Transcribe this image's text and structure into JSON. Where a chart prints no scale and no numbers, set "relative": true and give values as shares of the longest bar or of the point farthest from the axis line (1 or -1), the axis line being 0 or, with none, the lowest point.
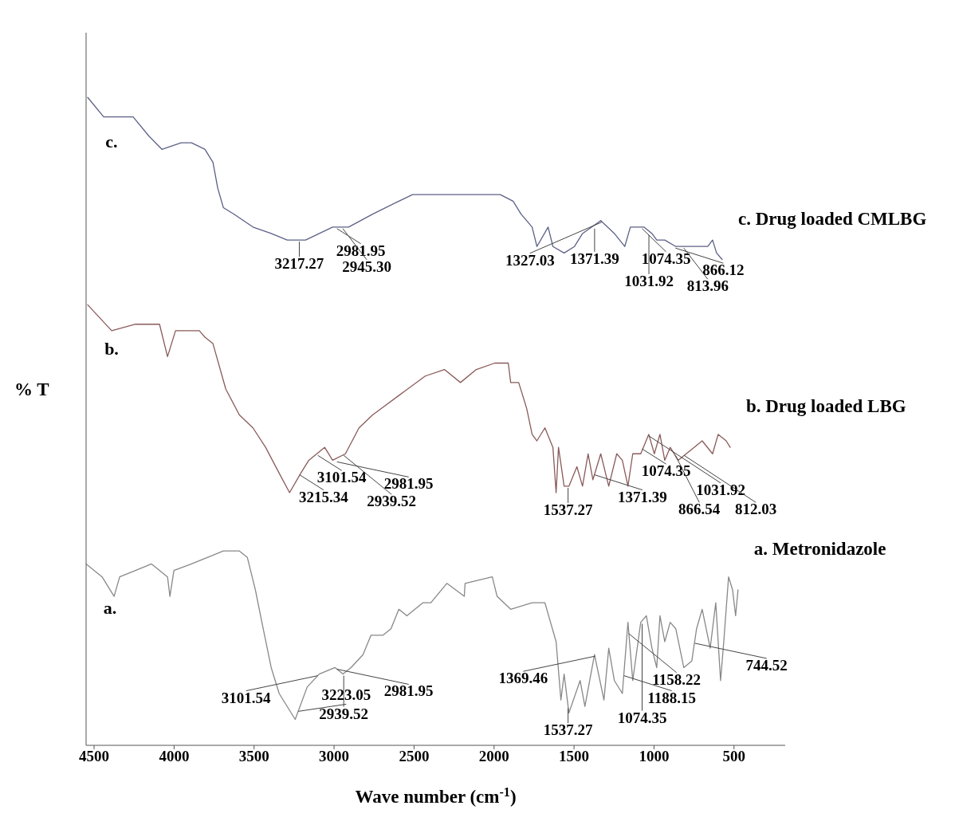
{
  "chart_data": {
    "type": "line",
    "xlabel": "Wave number (cm$^{-1}$)",
    "ylabel": "% T",
    "relative": true,
    "marker": "none",
    "xlim": [
      4550,
      180
    ],
    "xticks": [
      4500,
      4000,
      3500,
      3000,
      2500,
      2000,
      1500,
      1000,
      500
    ],
    "series": [
      {
        "name": "c. Drug loaded CMLBG",
        "color": "#5b6085",
        "x": [
          4540,
          4440,
          4256,
          4156,
          4076,
          3956,
          3891,
          3807,
          3757,
          3727,
          3692,
          3627,
          3507,
          3393,
          3293,
          3178,
          3009,
          2969,
          2909,
          2759,
          2595,
          2510,
          2345,
          2230,
          2096,
          1961,
          1881,
          1831,
          1762,
          1732,
          1662,
          1632,
          1562,
          1497,
          1447,
          1333,
          1248,
          1183,
          1148,
          1063,
          1013,
          983,
          933,
          864,
          814,
          749,
          664,
          634,
          609,
          574
        ],
        "values": [
          1,
          0.97,
          0.97,
          0.94,
          0.92,
          0.93,
          0.93,
          0.92,
          0.9,
          0.86,
          0.83,
          0.82,
          0.8,
          0.79,
          0.78,
          0.78,
          0.8,
          0.8,
          0.8,
          0.82,
          0.84,
          0.85,
          0.85,
          0.85,
          0.85,
          0.85,
          0.84,
          0.82,
          0.8,
          0.77,
          0.8,
          0.77,
          0.76,
          0.77,
          0.79,
          0.81,
          0.79,
          0.77,
          0.8,
          0.8,
          0.79,
          0.78,
          0.78,
          0.77,
          0.77,
          0.77,
          0.77,
          0.78,
          0.76,
          0.75
        ]
      },
      {
        "name": "b. Drug loaded LBG",
        "color": "#8a5a5a",
        "x": [
          4540,
          4465,
          4390,
          4241,
          4091,
          4041,
          3991,
          3926,
          3842,
          3807,
          3757,
          3677,
          3592,
          3507,
          3428,
          3343,
          3278,
          3208,
          3158,
          3059,
          3009,
          2929,
          2844,
          2759,
          2595,
          2430,
          2310,
          2210,
          2111,
          1996,
          1911,
          1896,
          1846,
          1796,
          1762,
          1732,
          1682,
          1632,
          1612,
          1597,
          1562,
          1532,
          1482,
          1447,
          1412,
          1382,
          1333,
          1283,
          1233,
          1198,
          1163,
          1133,
          1083,
          1033,
          998,
          963,
          933,
          899,
          849,
          799,
          749,
          699,
          634,
          599,
          549,
          524
        ],
        "values": [
          0.68,
          0.66,
          0.64,
          0.65,
          0.65,
          0.6,
          0.64,
          0.64,
          0.64,
          0.63,
          0.62,
          0.55,
          0.51,
          0.49,
          0.46,
          0.42,
          0.39,
          0.42,
          0.44,
          0.46,
          0.44,
          0.45,
          0.49,
          0.51,
          0.54,
          0.57,
          0.58,
          0.56,
          0.58,
          0.59,
          0.59,
          0.56,
          0.56,
          0.52,
          0.48,
          0.47,
          0.49,
          0.46,
          0.39,
          0.46,
          0.4,
          0.4,
          0.43,
          0.4,
          0.45,
          0.41,
          0.45,
          0.4,
          0.45,
          0.44,
          0.4,
          0.45,
          0.45,
          0.48,
          0.45,
          0.48,
          0.44,
          0.46,
          0.44,
          0.45,
          0.46,
          0.47,
          0.45,
          0.48,
          0.47,
          0.46
        ]
      },
      {
        "name": "a. Metronidazole",
        "color": "#888888",
        "x": [
          4550,
          4450,
          4375,
          4340,
          4241,
          4141,
          4041,
          4026,
          4001,
          3891,
          3792,
          3692,
          3592,
          3542,
          3492,
          3443,
          3393,
          3343,
          3293,
          3243,
          3168,
          3093,
          2994,
          2944,
          2894,
          2819,
          2769,
          2694,
          2644,
          2595,
          2545,
          2445,
          2395,
          2295,
          2186,
          2181,
          2011,
          1981,
          1896,
          1762,
          1682,
          1647,
          1612,
          1582,
          1562,
          1532,
          1462,
          1432,
          1372,
          1313,
          1283,
          1248,
          1198,
          1163,
          1133,
          1083,
          1048,
          1013,
          983,
          963,
          933,
          899,
          864,
          814,
          764,
          734,
          699,
          649,
          614,
          584,
          564,
          534,
          509,
          490,
          475
        ],
        "values": [
          0.28,
          0.26,
          0.23,
          0.26,
          0.27,
          0.28,
          0.26,
          0.23,
          0.27,
          0.28,
          0.29,
          0.3,
          0.3,
          0.29,
          0.24,
          0.18,
          0.12,
          0.08,
          0.06,
          0.04,
          0.09,
          0.11,
          0.12,
          0.11,
          0.12,
          0.14,
          0.17,
          0.17,
          0.18,
          0.21,
          0.2,
          0.22,
          0.22,
          0.25,
          0.23,
          0.25,
          0.26,
          0.23,
          0.21,
          0.22,
          0.22,
          0.19,
          0.16,
          0.07,
          0.11,
          0.05,
          0.1,
          0.06,
          0.14,
          0.07,
          0.15,
          0.1,
          0.08,
          0.19,
          0.1,
          0.19,
          0.2,
          0.15,
          0.12,
          0.2,
          0.16,
          0.19,
          0.18,
          0.12,
          0.13,
          0.18,
          0.21,
          0.15,
          0.22,
          0.1,
          0.16,
          0.26,
          0.24,
          0.2,
          0.24
        ]
      }
    ],
    "annotations": [
      "c.",
      "b.",
      "a.",
      {
        "text": "3217.27",
        "x": 3217.27,
        "y": 0.78
      },
      {
        "text": "2981.95",
        "x": 2981.95,
        "y": 0.8
      },
      {
        "text": "2945.30",
        "x": 2945.3,
        "y": 0.8
      },
      {
        "text": "1371.39",
        "x": 1371.39,
        "y": 0.8
      },
      {
        "text": "1327.03",
        "x": 1327.03,
        "y": 0.81
      },
      {
        "text": "1074.35",
        "x": 1074.35,
        "y": 0.8
      },
      {
        "text": "1031.92",
        "x": 1031.92,
        "y": 0.79
      },
      {
        "text": "866.12",
        "x": 866.12,
        "y": 0.77
      },
      {
        "text": "813.96",
        "x": 813.96,
        "y": 0.77
      },
      {
        "text": "3215.34",
        "x": 3215.34,
        "y": 0.42
      },
      {
        "text": "3101.54",
        "x": 3101.54,
        "y": 0.45
      },
      {
        "text": "2981.95",
        "x": 2981.95,
        "y": 0.44
      },
      {
        "text": "2939.52",
        "x": 2939.52,
        "y": 0.45
      },
      {
        "text": "1537.27",
        "x": 1537.27,
        "y": 0.4
      },
      {
        "text": "1371.39",
        "x": 1371.39,
        "y": 0.42
      },
      {
        "text": "1074.35",
        "x": 1074.35,
        "y": 0.46
      },
      {
        "text": "1031.92",
        "x": 1031.92,
        "y": 0.48
      },
      {
        "text": "866.54",
        "x": 866.54,
        "y": 0.45
      },
      {
        "text": "812.03",
        "x": 812.03,
        "y": 0.45
      },
      {
        "text": "3223.05",
        "x": 3223.05,
        "y": 0.05
      },
      {
        "text": "3101.54",
        "x": 3101.54,
        "y": 0.11
      },
      {
        "text": "2981.95",
        "x": 2981.95,
        "y": 0.12
      },
      {
        "text": "2939.52",
        "x": 2939.52,
        "y": 0.11
      },
      {
        "text": "1537.27",
        "x": 1537.27,
        "y": 0.06
      },
      {
        "text": "1369.46",
        "x": 1369.46,
        "y": 0.14
      },
      {
        "text": "1188.15",
        "x": 1188.15,
        "y": 0.11
      },
      {
        "text": "1158.22",
        "x": 1158.22,
        "y": 0.175
      },
      {
        "text": "1074.35",
        "x": 1074.35,
        "y": 0.19
      },
      {
        "text": "744.52",
        "x": 744.52,
        "y": 0.16
      }
    ]
  }
}
